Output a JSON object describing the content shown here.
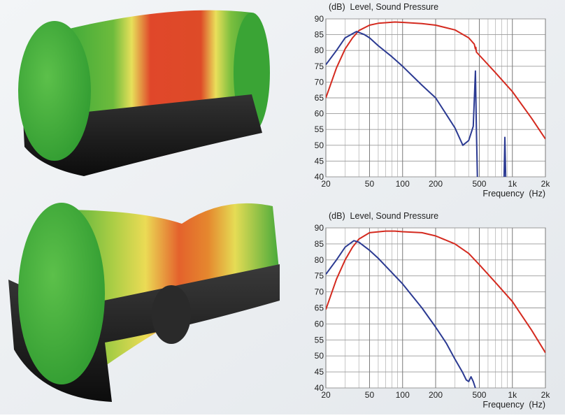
{
  "chart_data": [
    {
      "type": "line",
      "title": "(dB)  Level, Sound Pressure",
      "x_label": "Frequency  (Hz)",
      "xscale": "log",
      "grid": true,
      "xlim": [
        20,
        2000
      ],
      "ylim": [
        40,
        90
      ],
      "xticks": [
        20,
        50,
        100,
        200,
        500,
        {
          "value": 1000,
          "label": "1k"
        },
        {
          "value": 2000,
          "label": "2k"
        }
      ],
      "xminorticks": [
        30,
        40,
        60,
        70,
        80,
        90,
        300,
        400,
        600,
        700,
        800,
        900
      ],
      "yticks": [
        40,
        45,
        50,
        55,
        60,
        65,
        70,
        75,
        80,
        85,
        90
      ],
      "series": [
        {
          "color": "#d42a1f",
          "x": [
            20,
            25,
            30,
            35,
            40,
            50,
            60,
            85,
            100,
            150,
            200,
            300,
            400,
            450,
            460,
            465,
            470,
            500,
            700,
            1000,
            1500,
            2000
          ],
          "values": [
            65,
            74.5,
            80.5,
            84,
            86.3,
            88,
            88.6,
            89,
            88.9,
            88.5,
            88,
            86.5,
            84,
            82,
            80.5,
            81,
            79.5,
            78.5,
            73,
            67,
            58.5,
            52
          ]
        },
        {
          "color": "#2b3a92",
          "x": [
            20,
            25,
            30,
            38,
            45,
            50,
            60,
            80,
            100,
            150,
            200,
            300,
            354,
            400,
            440,
            461,
            470,
            480,
            500,
            840,
            854,
            870
          ],
          "values": [
            75.5,
            80,
            84,
            86,
            85,
            84,
            81.5,
            78,
            75,
            69,
            65,
            55.5,
            50,
            51.5,
            56,
            73.5,
            55,
            40,
            null,
            40,
            52.5,
            40
          ]
        }
      ]
    },
    {
      "type": "line",
      "title": "(dB)  Level, Sound Pressure",
      "x_label": "Frequency  (Hz)",
      "xscale": "log",
      "grid": true,
      "xlim": [
        20,
        2000
      ],
      "ylim": [
        40,
        90
      ],
      "xticks": [
        20,
        50,
        100,
        200,
        500,
        {
          "value": 1000,
          "label": "1k"
        },
        {
          "value": 2000,
          "label": "2k"
        }
      ],
      "xminorticks": [
        30,
        40,
        60,
        70,
        80,
        90,
        300,
        400,
        600,
        700,
        800,
        900
      ],
      "yticks": [
        40,
        45,
        50,
        55,
        60,
        65,
        70,
        75,
        80,
        85,
        90
      ],
      "series": [
        {
          "color": "#d42a1f",
          "x": [
            20,
            25,
            30,
            35,
            40,
            50,
            70,
            85,
            100,
            150,
            200,
            300,
            400,
            500,
            700,
            1000,
            1500,
            2000
          ],
          "values": [
            64.5,
            74,
            80,
            84,
            86.5,
            88.5,
            89,
            89,
            88.8,
            88.5,
            87.5,
            85,
            82,
            78.5,
            73,
            67,
            58,
            51
          ]
        },
        {
          "color": "#2b3a92",
          "x": [
            20,
            25,
            30,
            36,
            40,
            50,
            60,
            80,
            100,
            150,
            200,
            250,
            300,
            350,
            380,
            400,
            420,
            440,
            460
          ],
          "values": [
            75.5,
            80,
            84,
            86,
            85.5,
            83,
            80.5,
            76,
            72.5,
            65,
            59,
            54,
            49,
            45,
            42.5,
            42,
            43.5,
            42,
            40
          ]
        }
      ]
    }
  ]
}
